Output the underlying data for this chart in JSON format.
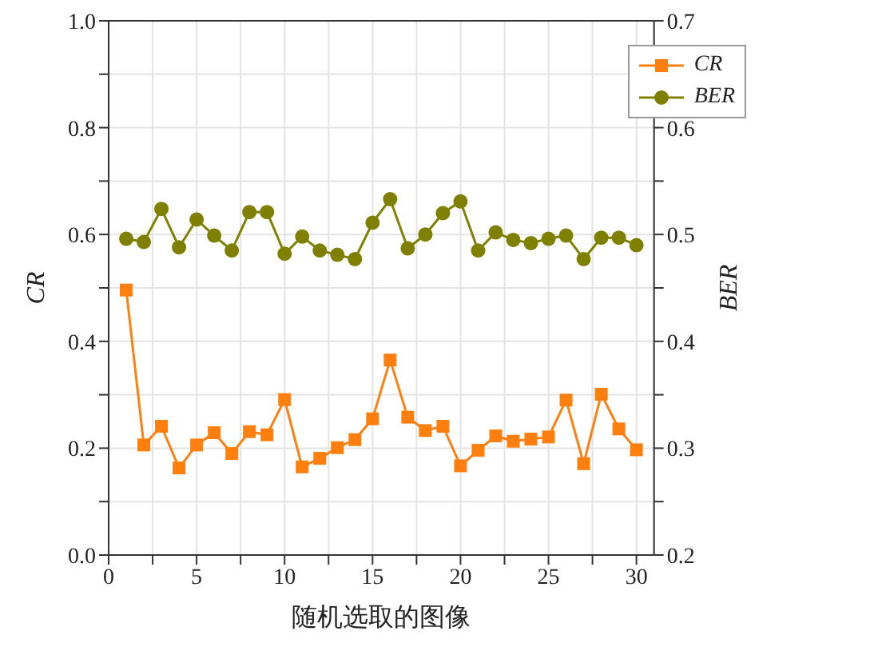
{
  "chart_data": {
    "type": "line",
    "xlabel": "随机选取的图像",
    "ylabel": "CR",
    "y2label": "BER",
    "x": [
      1,
      2,
      3,
      4,
      5,
      6,
      7,
      8,
      9,
      10,
      11,
      12,
      13,
      14,
      15,
      16,
      17,
      18,
      19,
      20,
      21,
      22,
      23,
      24,
      25,
      26,
      27,
      28,
      29,
      30
    ],
    "series": [
      {
        "name": "CR",
        "color": "#ff7f0e",
        "marker": "square",
        "values": [
          0.496,
          0.206,
          0.241,
          0.163,
          0.206,
          0.229,
          0.19,
          0.231,
          0.225,
          0.291,
          0.165,
          0.181,
          0.201,
          0.216,
          0.255,
          0.365,
          0.258,
          0.233,
          0.241,
          0.167,
          0.196,
          0.223,
          0.213,
          0.217,
          0.221,
          0.29,
          0.171,
          0.301,
          0.236,
          0.197
        ]
      },
      {
        "name": "BER",
        "color": "#808000",
        "marker": "circle",
        "axis": "y2",
        "values": [
          0.496,
          0.493,
          0.524,
          0.488,
          0.514,
          0.499,
          0.485,
          0.521,
          0.521,
          0.482,
          0.498,
          0.485,
          0.481,
          0.477,
          0.511,
          0.533,
          0.487,
          0.5,
          0.52,
          0.531,
          0.485,
          0.502,
          0.495,
          0.492,
          0.496,
          0.499,
          0.477,
          0.497,
          0.497,
          0.49
        ]
      }
    ],
    "xlim": [
      0,
      31
    ],
    "xticks": [
      0,
      {
        "value": 2.5,
        "label": null
      },
      5,
      {
        "value": 7.5,
        "label": null
      },
      10,
      {
        "value": 12.5,
        "label": null
      },
      15,
      {
        "value": 17.5,
        "label": null
      },
      20,
      {
        "value": 22.5,
        "label": null
      },
      25,
      {
        "value": 27.5,
        "label": null
      },
      30
    ],
    "ylim": [
      0,
      1
    ],
    "yticks": [
      {
        "value": 0,
        "label": "0.0"
      },
      {
        "value": 0.1,
        "label": null
      },
      {
        "value": 0.2,
        "label": "0.2"
      },
      {
        "value": 0.3,
        "label": null
      },
      {
        "value": 0.4,
        "label": "0.4"
      },
      {
        "value": 0.5,
        "label": null
      },
      {
        "value": 0.6,
        "label": "0.6"
      },
      {
        "value": 0.7,
        "label": null
      },
      {
        "value": 0.8,
        "label": "0.8"
      },
      {
        "value": 0.9,
        "label": null
      },
      {
        "value": 1,
        "label": "1.0"
      }
    ],
    "y2lim": [
      0.2,
      0.7
    ],
    "y2ticks": [
      0.2,
      {
        "value": 0.25,
        "label": null
      },
      0.3,
      {
        "value": 0.35,
        "label": null
      },
      0.4,
      {
        "value": 0.45,
        "label": null
      },
      0.5,
      {
        "value": 0.55,
        "label": null
      },
      0.6,
      {
        "value": 0.65,
        "label": null
      },
      0.7
    ],
    "grid": true,
    "legend": "top right",
    "line_style": "solid"
  }
}
